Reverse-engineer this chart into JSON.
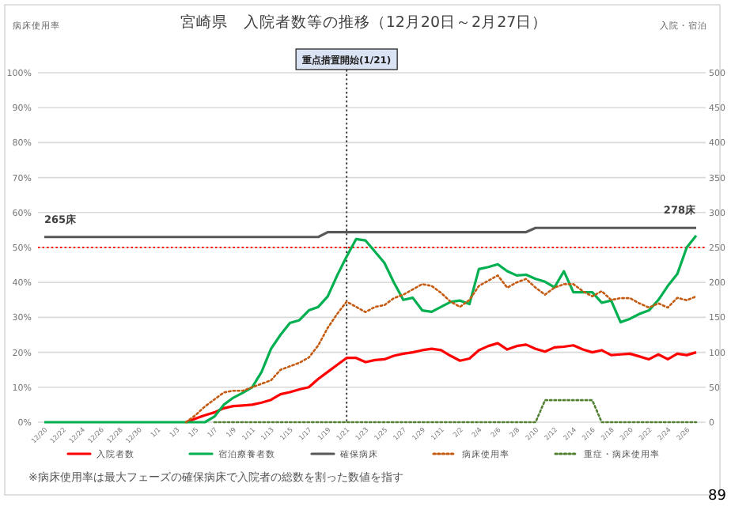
{
  "chart_data": {
    "type": "line",
    "title": "宮崎県　入院者数等の推移（12月20日～2月27日）",
    "ylabel": "病床使用率",
    "y2label": "入院・宿泊",
    "categories": [
      "12/20",
      null,
      "12/22",
      null,
      "12/24",
      null,
      "12/26",
      null,
      "12/28",
      null,
      "12/30",
      null,
      "1/1",
      null,
      "1/3",
      null,
      "1/5",
      null,
      "1/7",
      null,
      "1/9",
      null,
      "1/11",
      null,
      "1/13",
      null,
      "1/15",
      null,
      "1/17",
      null,
      "1/19",
      null,
      "1/21",
      null,
      "1/23",
      null,
      "1/25",
      null,
      "1/27",
      null,
      "1/29",
      null,
      "1/31",
      null,
      "2/2",
      null,
      "2/4",
      null,
      "2/6",
      null,
      "2/8",
      null,
      "2/10",
      null,
      "2/12",
      null,
      "2/14",
      null,
      "2/16",
      null,
      "2/18",
      null,
      "2/20",
      null,
      "2/22",
      null,
      "2/24",
      null,
      "2/26",
      null
    ],
    "series": [
      {
        "name": "入院者数",
        "color": "#ff0000",
        "axis": "y2",
        "line_style": "solid",
        "values": [
          null,
          null,
          null,
          null,
          null,
          null,
          null,
          null,
          null,
          null,
          null,
          null,
          null,
          null,
          null,
          0,
          5,
          10,
          14,
          20,
          23,
          24,
          25,
          28,
          32,
          40,
          43,
          47,
          50,
          62,
          72,
          82,
          92,
          92,
          86,
          89,
          90,
          95,
          98,
          100,
          103,
          105,
          103,
          95,
          88,
          91,
          103,
          109,
          113,
          104,
          109,
          111,
          105,
          101,
          107,
          108,
          110,
          104,
          100,
          103,
          96,
          97,
          98,
          94,
          90,
          97,
          90,
          98,
          96,
          100
        ]
      },
      {
        "name": "宿泊療養者数",
        "color": "#00b050",
        "axis": "y2",
        "line_style": "solid",
        "values": [
          0,
          0,
          0,
          0,
          0,
          0,
          0,
          0,
          0,
          0,
          0,
          0,
          0,
          0,
          0,
          0,
          0,
          0,
          8,
          25,
          35,
          42,
          50,
          72,
          105,
          125,
          142,
          146,
          160,
          165,
          180,
          210,
          237,
          262,
          260,
          244,
          228,
          200,
          175,
          178,
          160,
          158,
          165,
          172,
          174,
          169,
          219,
          222,
          226,
          216,
          210,
          211,
          205,
          201,
          193,
          216,
          186,
          186,
          186,
          171,
          174,
          143,
          148,
          155,
          160,
          175,
          195,
          212,
          250,
          267
        ]
      },
      {
        "name": "確保病床",
        "color": "#595959",
        "axis": "y2",
        "line_style": "solid",
        "values": [
          265,
          265,
          265,
          265,
          265,
          265,
          265,
          265,
          265,
          265,
          265,
          265,
          265,
          265,
          265,
          265,
          265,
          265,
          265,
          265,
          265,
          265,
          265,
          265,
          265,
          265,
          265,
          265,
          265,
          265,
          272,
          272,
          272,
          272,
          272,
          272,
          272,
          272,
          272,
          272,
          272,
          272,
          272,
          272,
          272,
          272,
          272,
          272,
          272,
          272,
          272,
          272,
          278,
          278,
          278,
          278,
          278,
          278,
          278,
          278,
          278,
          278,
          278,
          278,
          278,
          278,
          278,
          278,
          278,
          278
        ]
      },
      {
        "name": "病床使用率",
        "color": "#c55a11",
        "axis": "y",
        "line_style": "dotted",
        "values": [
          null,
          null,
          null,
          null,
          null,
          null,
          null,
          null,
          null,
          null,
          null,
          null,
          null,
          null,
          null,
          0,
          2,
          4.5,
          6.5,
          8.5,
          9,
          9,
          10,
          11,
          12,
          15,
          16,
          17,
          18.5,
          22,
          27,
          31,
          34.5,
          33,
          31.5,
          33,
          33.5,
          35.5,
          36.5,
          38,
          39.5,
          39,
          37,
          34.5,
          33,
          35,
          39,
          40.5,
          42,
          38.5,
          40,
          41,
          38.5,
          36.5,
          38.5,
          39.5,
          39.5,
          37.5,
          36,
          37.5,
          35,
          35.5,
          35.5,
          34,
          32.8,
          34,
          32.8,
          35.6,
          34.9,
          36
        ]
      },
      {
        "name": "重症・病床使用率",
        "color": "#548235",
        "axis": "y",
        "line_style": "dotted",
        "values": [
          null,
          null,
          null,
          null,
          null,
          null,
          null,
          null,
          null,
          null,
          null,
          null,
          null,
          null,
          null,
          null,
          null,
          null,
          0,
          0,
          0,
          0,
          0,
          0,
          0,
          0,
          0,
          0,
          0,
          0,
          0,
          0,
          0,
          0,
          0,
          0,
          0,
          0,
          0,
          0,
          0,
          0,
          0,
          0,
          0,
          0,
          0,
          0,
          0,
          0,
          0,
          0,
          0,
          6.3,
          6.3,
          6.3,
          6.3,
          6.3,
          6.3,
          0,
          0,
          0,
          0,
          0,
          0,
          0,
          0,
          0,
          0,
          0
        ]
      }
    ],
    "ylim": [
      0,
      100
    ],
    "yticks": [
      {
        "value": 0,
        "label": "0%"
      },
      {
        "value": 10,
        "label": "10%"
      },
      {
        "value": 20,
        "label": "20%"
      },
      {
        "value": 30,
        "label": "30%"
      },
      {
        "value": 40,
        "label": "40%"
      },
      {
        "value": 50,
        "label": "50%"
      },
      {
        "value": 60,
        "label": "60%"
      },
      {
        "value": 70,
        "label": "70%"
      },
      {
        "value": 80,
        "label": "80%"
      },
      {
        "value": 90,
        "label": "90%"
      },
      {
        "value": 100,
        "label": "100%"
      }
    ],
    "y2lim": [
      0,
      500
    ],
    "y2ticks": [
      0,
      50,
      100,
      150,
      200,
      250,
      300,
      350,
      400,
      450,
      500
    ],
    "ref_lines": [
      {
        "axis": "y",
        "value": 50,
        "color": "#ff0000",
        "line_style": "dotted"
      },
      {
        "axis": "x",
        "value": "1/21",
        "label": "重点措置開始(1/21)",
        "color": "#404040",
        "line_style": "dotted"
      }
    ],
    "annotations": [
      "265床",
      "278床",
      "※病床使用率は最大フェーズの確保病床で入院者の総数を割った数値を指す",
      "89"
    ],
    "grid": "y",
    "legend": "bottom",
    "marker": "none"
  }
}
